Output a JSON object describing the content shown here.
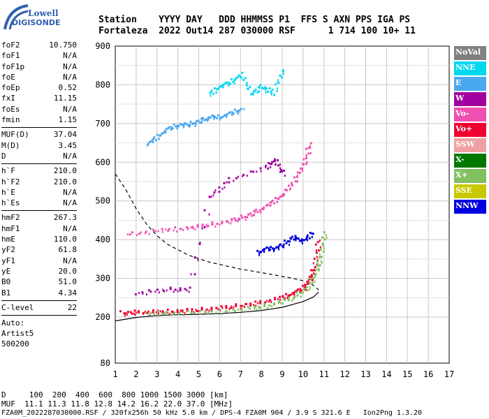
{
  "logo": {
    "line1": "Lowell",
    "line2": "DIGISONDE"
  },
  "header": {
    "labels": "Station    YYYY DAY   DDD HHMMSS P1  FFS S AXN PPS IGA PS",
    "values": "Fortaleza  2022 Out14 287 030000 RSF      1 714 100 10+ 11"
  },
  "params_a": [
    {
      "name": "foF2",
      "value": "10.750"
    },
    {
      "name": "foF1",
      "value": "N/A"
    },
    {
      "name": "foF1p",
      "value": "N/A"
    },
    {
      "name": "foE",
      "value": "N/A"
    },
    {
      "name": "foEp",
      "value": "0.52"
    },
    {
      "name": "fxI",
      "value": "11.15"
    },
    {
      "name": "foEs",
      "value": "N/A"
    },
    {
      "name": "fmin",
      "value": "1.15"
    }
  ],
  "params_b": [
    {
      "name": "MUF(D)",
      "value": "37.04"
    },
    {
      "name": "M(D)",
      "value": "3.45"
    },
    {
      "name": "D",
      "value": "N/A"
    }
  ],
  "params_c": [
    {
      "name": "h`F",
      "value": "210.0"
    },
    {
      "name": "h`F2",
      "value": "210.0"
    },
    {
      "name": "h`E",
      "value": "N/A"
    },
    {
      "name": "h`Es",
      "value": "N/A"
    }
  ],
  "params_d": [
    {
      "name": "hmF2",
      "value": "267.3"
    },
    {
      "name": "hmF1",
      "value": "N/A"
    },
    {
      "name": "hmE",
      "value": "110.0"
    },
    {
      "name": "yF2",
      "value": "61.8"
    },
    {
      "name": "yF1",
      "value": "N/A"
    },
    {
      "name": "yE",
      "value": "20.0"
    },
    {
      "name": "B0",
      "value": "51.0"
    },
    {
      "name": "B1",
      "value": "4.34"
    }
  ],
  "params_e": [
    {
      "name": "C-level",
      "value": "22"
    }
  ],
  "auto": {
    "line1": "Auto:",
    "line2": "Artist5",
    "line3": "500200"
  },
  "legend": [
    {
      "label": "NoVal",
      "color": "#808080"
    },
    {
      "label": "NNE",
      "color": "#00d8f0"
    },
    {
      "label": "E",
      "color": "#4aa8f0"
    },
    {
      "label": "W",
      "color": "#a000a0"
    },
    {
      "label": "Vo-",
      "color": "#f050b0"
    },
    {
      "label": "Vo+",
      "color": "#f00030"
    },
    {
      "label": "SSW",
      "color": "#f0a0a0"
    },
    {
      "label": "X-",
      "color": "#007800"
    },
    {
      "label": "X+",
      "color": "#80c060"
    },
    {
      "label": "SSE",
      "color": "#c8c800"
    },
    {
      "label": "NNW",
      "color": "#0000e0"
    }
  ],
  "footer": {
    "line1": "D     100  200  400  600  800 1000 1500 3000 [km]",
    "line2": "MUF  11.1 11.3 11.8 12.8 14.2 16.2 22.0 37.0 [MHz]",
    "line3": "FZA0M_2022287030000.RSF / 320fx256h 50 kHz 5.0 km / DPS-4 FZA0M 904 / 3.9 S 321.6 E   Ion2Png 1.3.20"
  },
  "chart_data": {
    "type": "scatter",
    "xlabel": "",
    "ylabel": "",
    "xlim": [
      1,
      17
    ],
    "ylim": [
      80,
      900
    ],
    "x_ticks": [
      1,
      2,
      3,
      4,
      5,
      6,
      7,
      8,
      9,
      10,
      11,
      12,
      13,
      14,
      15,
      16,
      17
    ],
    "y_ticks": [
      80,
      200,
      300,
      400,
      500,
      600,
      700,
      800,
      900
    ],
    "grid": true,
    "series": [
      {
        "name": "Vo+",
        "color": "#f00030",
        "x": [
          1.3,
          2.0,
          3.0,
          4.0,
          5.0,
          6.0,
          7.0,
          8.0,
          9.0,
          9.5,
          10.0,
          10.3,
          10.5,
          10.7
        ],
        "y": [
          214,
          216,
          217,
          219,
          222,
          227,
          233,
          242,
          255,
          265,
          280,
          300,
          330,
          400
        ]
      },
      {
        "name": "X+",
        "color": "#80c060",
        "x": [
          2.5,
          4.0,
          6.0,
          7.5,
          8.5,
          9.5,
          10.2,
          10.6,
          10.8,
          11.0
        ],
        "y": [
          213,
          214,
          218,
          226,
          236,
          254,
          280,
          320,
          360,
          420
        ]
      },
      {
        "name": "Vo-",
        "color": "#f050b0",
        "x": [
          1.6,
          3.2,
          4.5,
          5.5,
          6.5,
          7.2,
          7.8,
          8.5,
          9.0,
          9.6,
          10.0,
          10.3
        ],
        "y": [
          418,
          428,
          434,
          442,
          452,
          463,
          478,
          500,
          520,
          560,
          600,
          650
        ]
      },
      {
        "name": "E",
        "color": "#4aa8f0",
        "x": [
          2.5,
          3.0,
          3.5,
          4.0,
          4.5,
          5.0,
          5.5,
          6.0,
          6.5,
          7.0
        ],
        "y": [
          650,
          670,
          690,
          700,
          700,
          710,
          720,
          720,
          730,
          740
        ]
      },
      {
        "name": "NNE",
        "color": "#00d8f0",
        "x": [
          5.5,
          6.0,
          6.5,
          7.0,
          7.5,
          8.0,
          8.5,
          9.0
        ],
        "y": [
          780,
          800,
          810,
          830,
          780,
          800,
          780,
          840
        ]
      },
      {
        "name": "NNW",
        "color": "#0000e0",
        "x": [
          7.8,
          8.2,
          8.6,
          9.0,
          9.5,
          10.0,
          10.4
        ],
        "y": [
          370,
          380,
          380,
          390,
          410,
          400,
          420
        ]
      },
      {
        "name": "W",
        "color": "#a000a0",
        "x": [
          2.0,
          3.5,
          4.5,
          5.5,
          6.5,
          8.2,
          8.6,
          9.0
        ],
        "y": [
          265,
          275,
          275,
          515,
          560,
          590,
          610,
          575
        ]
      }
    ],
    "o_trace": {
      "x": [
        1.0,
        2.0,
        3.0,
        4.0,
        5.0,
        6.0,
        7.0,
        8.0,
        9.0,
        10.0,
        10.5,
        10.75
      ],
      "y": [
        190,
        199,
        204,
        206,
        207,
        209,
        212,
        217,
        225,
        240,
        252,
        265
      ]
    },
    "x_trace": {
      "x": [
        1.0,
        1.5,
        2.0,
        2.5,
        3.0,
        3.5,
        4.5,
        5.5,
        7.0,
        8.5,
        9.5,
        10.3,
        10.75
      ],
      "y": [
        570,
        530,
        480,
        440,
        410,
        388,
        360,
        342,
        324,
        310,
        300,
        290,
        270
      ]
    }
  }
}
